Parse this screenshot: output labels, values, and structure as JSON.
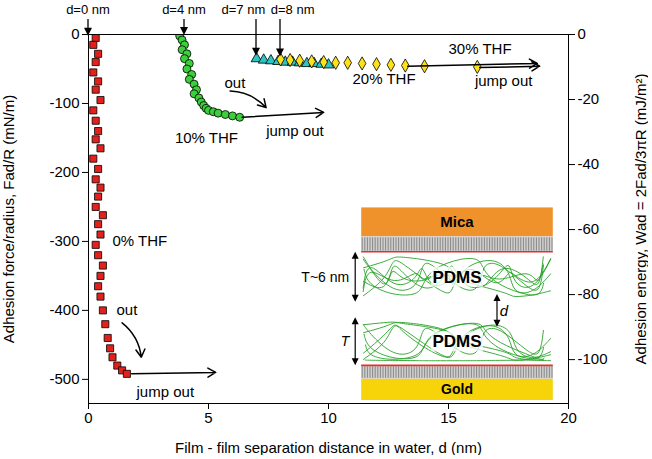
{
  "chart_data": {
    "type": "scatter",
    "xlabel": "Film - film separation distance in water, d (nm)",
    "ylabel": "Adhesion force/radius, Fad/R (mN/m)",
    "y2label": "Adhesion energy, Wad = 2Fad/3πR (mJ/m²)",
    "xlim": [
      0,
      20
    ],
    "xticks": [
      0,
      5,
      10,
      15,
      20
    ],
    "ylim": [
      -535,
      0
    ],
    "yticks": [
      -500,
      -400,
      -300,
      -200,
      -100,
      0
    ],
    "y2lim": [
      -113.5,
      0
    ],
    "y2ticks": [
      -100,
      -80,
      -60,
      -40,
      -20,
      0
    ],
    "grid": false,
    "series": [
      {
        "name": "0% THF",
        "color": "#e3211c",
        "marker": "square",
        "label_at": [
          1.0,
          -300
        ],
        "x": [
          0.3,
          0.2,
          0.4,
          0.3,
          0.2,
          0.4,
          0.3,
          0.5,
          0.2,
          0.3,
          0.4,
          0.3,
          0.5,
          0.2,
          0.4,
          0.3,
          0.5,
          0.4,
          0.3,
          0.6,
          0.4,
          0.5,
          0.3,
          0.4,
          0.6,
          0.5,
          0.4,
          0.5,
          0.6,
          0.7,
          0.8,
          0.9,
          1.0,
          1.2,
          1.4,
          1.6
        ],
        "values": [
          -5,
          -15,
          -28,
          -40,
          -55,
          -68,
          -80,
          -95,
          -110,
          -125,
          -140,
          -152,
          -165,
          -180,
          -195,
          -210,
          -222,
          -235,
          -250,
          -262,
          -275,
          -290,
          -305,
          -320,
          -335,
          -350,
          -365,
          -380,
          -400,
          -420,
          -440,
          -455,
          -468,
          -480,
          -487,
          -492
        ]
      },
      {
        "name": "10% THF",
        "color": "#3ccf3c",
        "marker": "circle",
        "label_at": [
          3.6,
          -150
        ],
        "x": [
          3.8,
          3.9,
          4.0,
          3.9,
          4.1,
          4.0,
          4.2,
          4.1,
          4.3,
          4.2,
          4.4,
          4.5,
          4.4,
          4.6,
          4.7,
          4.8,
          4.9,
          5.0,
          5.2,
          5.4,
          5.7,
          6.0,
          6.3
        ],
        "values": [
          -2,
          -8,
          -15,
          -22,
          -28,
          -35,
          -42,
          -50,
          -58,
          -65,
          -72,
          -80,
          -86,
          -92,
          -98,
          -103,
          -107,
          -110,
          -112,
          -114,
          -116,
          -118,
          -120
        ]
      },
      {
        "name": "20% THF",
        "color": "#2ec4c4",
        "marker": "triangle",
        "label_at": [
          11.0,
          -65
        ],
        "x": [
          7.0,
          7.3,
          7.6,
          7.9,
          8.2,
          8.5,
          8.8,
          9.1,
          9.4,
          9.7,
          10.0
        ],
        "values": [
          -35,
          -37,
          -38,
          -39,
          -40,
          -40,
          -41,
          -42,
          -42,
          -43,
          -44
        ]
      },
      {
        "name": "30% THF",
        "color": "#ffe11a",
        "marker": "diamond",
        "label_at": [
          15.0,
          -22
        ],
        "x": [
          8.0,
          8.4,
          8.8,
          9.3,
          9.8,
          10.3,
          10.8,
          11.4,
          12.0,
          12.6,
          13.2,
          14.0,
          16.2
        ],
        "values": [
          -36,
          -37,
          -38,
          -39,
          -40,
          -41,
          -41,
          -42,
          -43,
          -44,
          -45,
          -46,
          -47
        ]
      }
    ],
    "top_labels": [
      {
        "text": "d=0 nm",
        "x": 0,
        "y": -4
      },
      {
        "text": "d=4 nm",
        "x": 4,
        "y": -3
      },
      {
        "text": "d=7 nm",
        "x": 7,
        "y": -33
      },
      {
        "text": "d=8 nm",
        "x": 8,
        "y": -34
      }
    ],
    "annotations": [
      {
        "text": "out",
        "x": 1.6,
        "y": -400
      },
      {
        "text": "jump out",
        "x": 3.2,
        "y": -518
      },
      {
        "text": "out",
        "x": 6.1,
        "y": -70
      },
      {
        "text": "jump out",
        "x": 8.6,
        "y": -140
      },
      {
        "text": "jump out",
        "x": 17.3,
        "y": -68
      }
    ],
    "arrows": [
      {
        "x1": 1.4,
        "y1": -418,
        "x2": 2.2,
        "y2": -468,
        "line_style": "curved"
      },
      {
        "x1": 1.8,
        "y1": -492,
        "x2": 5.3,
        "y2": -490,
        "line_style": "solid"
      },
      {
        "x1": 5.9,
        "y1": -82,
        "x2": 7.4,
        "y2": -106,
        "line_style": "curved"
      },
      {
        "x1": 6.4,
        "y1": -120,
        "x2": 9.8,
        "y2": -113,
        "line_style": "solid"
      },
      {
        "x1": 13.3,
        "y1": -46,
        "x2": 18.7,
        "y2": -42,
        "line_style": "solid"
      },
      {
        "x1": 16.3,
        "y1": -48,
        "x2": 18.8,
        "y2": -46,
        "line_style": "solid"
      }
    ],
    "inset": {
      "mica": "Mica",
      "gold": "Gold",
      "top_film": "PDMS",
      "bottom_film": "PDMS",
      "thickness_top": "T~6 nm",
      "thickness_bottom": "T",
      "gap": "d"
    }
  }
}
